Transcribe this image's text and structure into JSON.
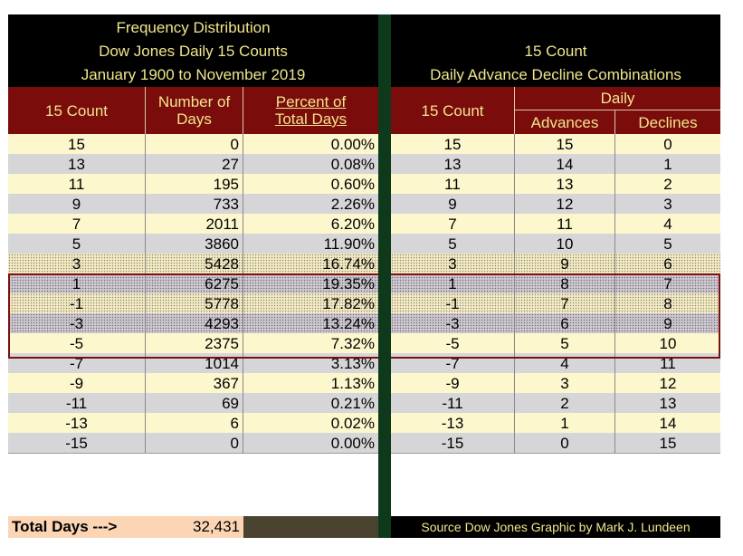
{
  "left_title": [
    "Frequency Distribution",
    "Dow Jones Daily 15 Counts",
    "January 1900 to November 2019"
  ],
  "right_title": [
    "15 Count",
    "Daily Advance Decline Combinations"
  ],
  "left_headers": {
    "count": "15 Count",
    "days": "Number of Days",
    "percent": "Percent of Total Days"
  },
  "right_headers": {
    "count": "15 Count",
    "group": "Daily",
    "advances": "Advances",
    "declines": "Declines"
  },
  "rows": [
    {
      "count": "15",
      "days": "0",
      "percent": "0.00%",
      "r_count": "15",
      "advances": "15",
      "declines": "0",
      "shade": "yellow",
      "highlight": false
    },
    {
      "count": "13",
      "days": "27",
      "percent": "0.08%",
      "r_count": "13",
      "advances": "14",
      "declines": "1",
      "shade": "gray",
      "highlight": false
    },
    {
      "count": "11",
      "days": "195",
      "percent": "0.60%",
      "r_count": "11",
      "advances": "13",
      "declines": "2",
      "shade": "yellow",
      "highlight": false
    },
    {
      "count": "9",
      "days": "733",
      "percent": "2.26%",
      "r_count": "9",
      "advances": "12",
      "declines": "3",
      "shade": "gray",
      "highlight": false
    },
    {
      "count": "7",
      "days": "2011",
      "percent": "6.20%",
      "r_count": "7",
      "advances": "11",
      "declines": "4",
      "shade": "yellow",
      "highlight": false
    },
    {
      "count": "5",
      "days": "3860",
      "percent": "11.90%",
      "r_count": "5",
      "advances": "10",
      "declines": "5",
      "shade": "gray",
      "highlight": false
    },
    {
      "count": "3",
      "days": "5428",
      "percent": "16.74%",
      "r_count": "3",
      "advances": "9",
      "declines": "6",
      "shade": "yellow",
      "highlight": true
    },
    {
      "count": "1",
      "days": "6275",
      "percent": "19.35%",
      "r_count": "1",
      "advances": "8",
      "declines": "7",
      "shade": "gray",
      "highlight": true
    },
    {
      "count": "-1",
      "days": "5778",
      "percent": "17.82%",
      "r_count": "-1",
      "advances": "7",
      "declines": "8",
      "shade": "yellow",
      "highlight": true
    },
    {
      "count": "-3",
      "days": "4293",
      "percent": "13.24%",
      "r_count": "-3",
      "advances": "6",
      "declines": "9",
      "shade": "gray",
      "highlight": true
    },
    {
      "count": "-5",
      "days": "2375",
      "percent": "7.32%",
      "r_count": "-5",
      "advances": "5",
      "declines": "10",
      "shade": "yellow",
      "highlight": false
    },
    {
      "count": "-7",
      "days": "1014",
      "percent": "3.13%",
      "r_count": "-7",
      "advances": "4",
      "declines": "11",
      "shade": "gray",
      "highlight": false
    },
    {
      "count": "-9",
      "days": "367",
      "percent": "1.13%",
      "r_count": "-9",
      "advances": "3",
      "declines": "12",
      "shade": "yellow",
      "highlight": false
    },
    {
      "count": "-11",
      "days": "69",
      "percent": "0.21%",
      "r_count": "-11",
      "advances": "2",
      "declines": "13",
      "shade": "gray",
      "highlight": false
    },
    {
      "count": "-13",
      "days": "6",
      "percent": "0.02%",
      "r_count": "-13",
      "advances": "1",
      "declines": "14",
      "shade": "yellow",
      "highlight": false
    },
    {
      "count": "-15",
      "days": "0",
      "percent": "0.00%",
      "r_count": "-15",
      "advances": "0",
      "declines": "15",
      "shade": "gray",
      "highlight": false
    }
  ],
  "footer": {
    "total_label": "Total Days --->",
    "total_value": "32,431",
    "source": "Source Dow Jones   Graphic by Mark J. Lundeen"
  },
  "colors": {
    "header_bg": "#7b0c0c",
    "title_bg": "#000000",
    "title_text": "#f0e68c",
    "row_yellow": "#fcf7cc",
    "row_gray": "#d6d6d8",
    "total_bg": "#fcd5b4",
    "divider": "#0e3a1b",
    "highlight_border": "#7b1010"
  }
}
